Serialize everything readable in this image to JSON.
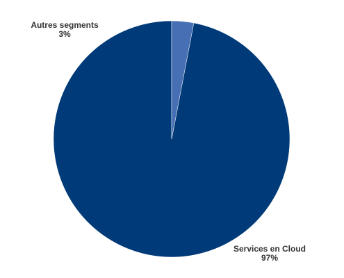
{
  "chart_data": {
    "type": "pie",
    "title": "",
    "slices": [
      {
        "label": "Services en Cloud",
        "value": 97,
        "display": "97%",
        "color": "#003a78"
      },
      {
        "label": "Autres segments",
        "value": 3,
        "display": "3%",
        "color": "#4670b3"
      }
    ],
    "start_angle_deg": 0,
    "direction": "counterclockwise",
    "legend": "none"
  }
}
